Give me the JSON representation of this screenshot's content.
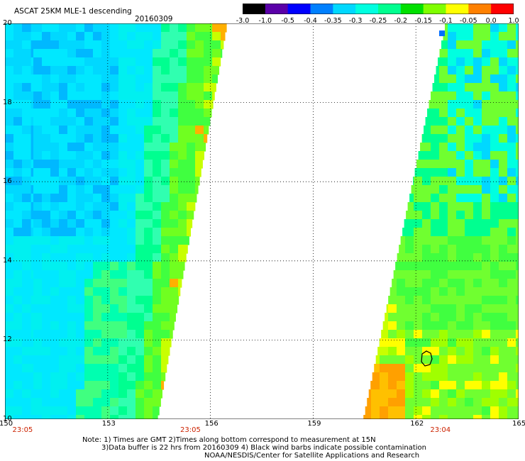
{
  "header": {
    "title": "ASCAT 25KM MLE-1 descending",
    "date": "20160309"
  },
  "colorbar": {
    "tick_labels": [
      "-3.0",
      "-1.0",
      "-0.5",
      "-0.4",
      "-0.35",
      "-0.3",
      "-0.25",
      "-0.2",
      "-0.15",
      "-0.1",
      "-0.05",
      "0.0",
      "1.0"
    ],
    "colors": [
      "#000000",
      "#5a00a8",
      "#0000ff",
      "#0080ff",
      "#00d8ff",
      "#00ffe0",
      "#00ff90",
      "#00e000",
      "#80ff00",
      "#ffff00",
      "#ff8000",
      "#ff0000"
    ]
  },
  "map": {
    "lat_labels": [
      "20",
      "18",
      "16",
      "14",
      "12",
      "10"
    ],
    "lon_labels": [
      "150",
      "153",
      "156",
      "159",
      "162",
      "165"
    ],
    "lat_range": [
      10,
      20
    ],
    "lon_range": [
      150,
      165
    ],
    "time_labels": [
      {
        "text": "23:05",
        "lon": 150.3
      },
      {
        "text": "23:05",
        "lon": 155.2
      },
      {
        "text": "23:04",
        "lon": 162.5
      }
    ]
  },
  "notes": {
    "line1": "Note: 1) Times are GMT 2)Times along bottom correspond to measurement at 15N",
    "line2": "3)Data buffer is 22 hrs from 20160309 4) Black wind barbs indicate possible contamination",
    "line3": "NOAA/NESDIS/Center for Satellite Applications and Research"
  }
}
